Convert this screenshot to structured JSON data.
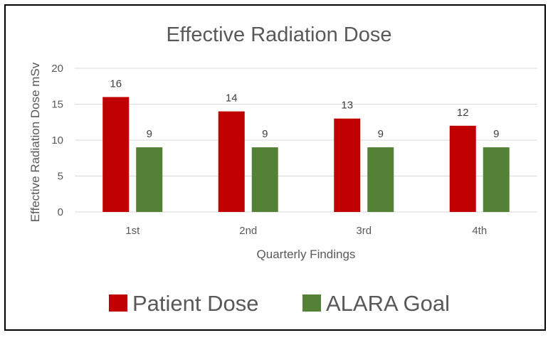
{
  "chart_data": {
    "type": "bar",
    "title": "Effective Radiation Dose",
    "xlabel": "Quarterly Findings",
    "ylabel": "Effective Radiation Dose mSv",
    "categories": [
      "1st",
      "2nd",
      "3rd",
      "4th"
    ],
    "series": [
      {
        "name": "Patient Dose",
        "values": [
          16,
          14,
          13,
          12
        ],
        "color": "#C00000"
      },
      {
        "name": "ALARA Goal",
        "values": [
          9,
          9,
          9,
          9
        ],
        "color": "#538135"
      }
    ],
    "ylim": [
      0,
      20
    ],
    "yticks": [
      "0",
      "5",
      "10",
      "15",
      "20"
    ],
    "grid": true,
    "legend_position": "bottom",
    "data_labels": true
  }
}
